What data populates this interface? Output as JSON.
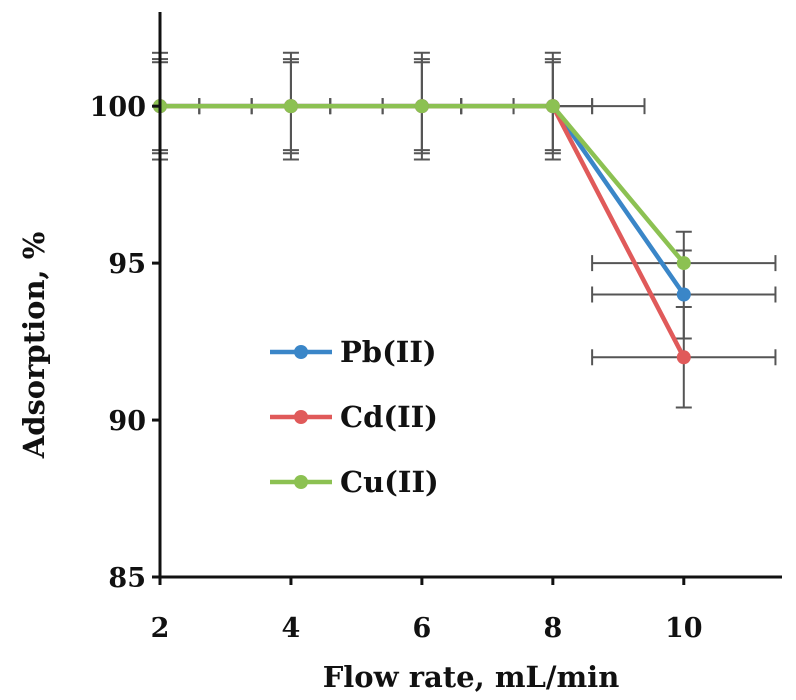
{
  "chart_data": {
    "type": "line",
    "title": "",
    "xlabel": "Flow rate, mL/min",
    "ylabel": "Adsorption, %",
    "x": [
      2,
      4,
      6,
      8,
      10
    ],
    "xlim": [
      2,
      11.5
    ],
    "ylim": [
      85,
      103
    ],
    "xticks": [
      2,
      4,
      6,
      8,
      10
    ],
    "xtick_labels": [
      "2",
      "4",
      "6",
      "8",
      "10"
    ],
    "yticks": [
      85,
      90,
      95,
      100
    ],
    "ytick_labels": [
      "85",
      "90",
      "95",
      "100"
    ],
    "grid": false,
    "legend_position": "center-left",
    "series": [
      {
        "name": "Pb(II)",
        "color": "#3a86c8",
        "values": [
          100,
          100,
          100,
          100,
          94
        ],
        "y_err": [
          1.5,
          1.5,
          1.5,
          1.5,
          1.4
        ],
        "x_err": [
          0.6,
          0.6,
          0.6,
          0.6,
          1.4
        ]
      },
      {
        "name": "Cd(II)",
        "color": "#e05a5a",
        "values": [
          100,
          100,
          100,
          100,
          92
        ],
        "y_err": [
          1.4,
          1.4,
          1.4,
          1.4,
          1.6
        ],
        "x_err": [
          0.6,
          0.6,
          0.6,
          1.4,
          1.4
        ]
      },
      {
        "name": "Cu(II)",
        "color": "#8cc152",
        "values": [
          100,
          100,
          100,
          100,
          95
        ],
        "y_err": [
          1.7,
          1.7,
          1.7,
          1.7,
          1.0
        ],
        "x_err": [
          0.6,
          0.6,
          0.6,
          0.6,
          1.4
        ]
      }
    ]
  }
}
